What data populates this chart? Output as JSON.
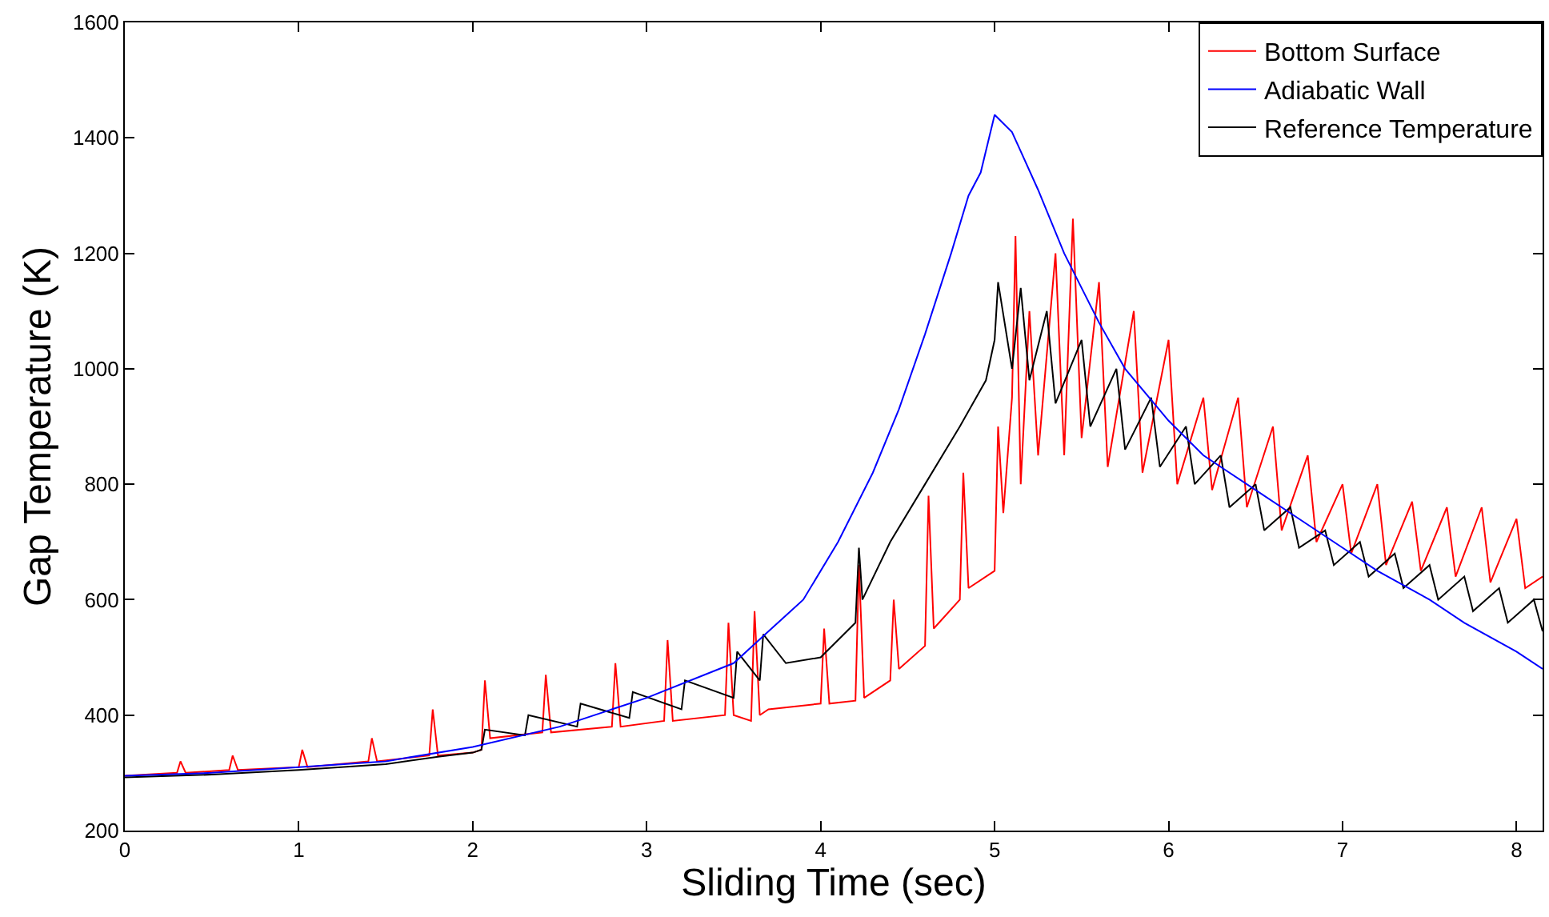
{
  "chart_data": {
    "type": "line",
    "xlabel": "Sliding Time (sec)",
    "ylabel": "Gap Temperature (K)",
    "xlim": [
      0,
      8.15
    ],
    "xticks": [
      0,
      1,
      2,
      3,
      4,
      5,
      6,
      7,
      8
    ],
    "ylim": [
      200,
      1600
    ],
    "yticks": [
      200,
      400,
      600,
      800,
      1000,
      1200,
      1400,
      1600
    ],
    "grid": false,
    "legend": "top right",
    "marker": "none",
    "line_style": "solid",
    "series": [
      {
        "name": "Bottom Surface",
        "color": "#ff0000",
        "x": [
          0,
          0.3,
          0.32,
          0.35,
          0.6,
          0.62,
          0.65,
          1.0,
          1.02,
          1.05,
          1.4,
          1.42,
          1.45,
          1.75,
          1.77,
          1.8,
          2.0,
          2.05,
          2.07,
          2.1,
          2.4,
          2.42,
          2.45,
          2.8,
          2.82,
          2.85,
          3.1,
          3.12,
          3.15,
          3.45,
          3.47,
          3.5,
          3.6,
          3.62,
          3.65,
          3.7,
          4.0,
          4.02,
          4.05,
          4.2,
          4.22,
          4.25,
          4.4,
          4.42,
          4.45,
          4.6,
          4.62,
          4.65,
          4.8,
          4.82,
          4.85,
          5.0,
          5.02,
          5.05,
          5.1,
          5.12,
          5.15,
          5.2,
          5.25,
          5.35,
          5.4,
          5.45,
          5.5,
          5.6,
          5.65,
          5.8,
          5.85,
          6.0,
          6.05,
          6.2,
          6.25,
          6.4,
          6.45,
          6.6,
          6.65,
          6.8,
          6.85,
          7.0,
          7.05,
          7.2,
          7.25,
          7.4,
          7.45,
          7.6,
          7.65,
          7.8,
          7.85,
          8.0,
          8.05,
          8.15
        ],
        "values": [
          295,
          300,
          320,
          300,
          305,
          330,
          305,
          310,
          340,
          310,
          320,
          360,
          320,
          330,
          410,
          330,
          335,
          340,
          460,
          360,
          370,
          470,
          370,
          380,
          490,
          380,
          390,
          530,
          390,
          400,
          560,
          400,
          390,
          580,
          400,
          410,
          420,
          550,
          420,
          425,
          660,
          430,
          460,
          600,
          480,
          520,
          780,
          550,
          600,
          820,
          620,
          650,
          900,
          750,
          950,
          1230,
          800,
          1100,
          850,
          1200,
          850,
          1260,
          880,
          1150,
          830,
          1100,
          820,
          1050,
          800,
          950,
          790,
          950,
          760,
          900,
          720,
          850,
          700,
          800,
          680,
          800,
          660,
          770,
          650,
          760,
          640,
          760,
          630,
          740,
          620,
          640
        ]
      },
      {
        "name": "Adiabatic Wall",
        "color": "#0000ff",
        "x": [
          0,
          0.5,
          1.0,
          1.5,
          2.0,
          2.5,
          3.0,
          3.5,
          3.7,
          3.9,
          4.1,
          4.3,
          4.45,
          4.6,
          4.75,
          4.85,
          4.92,
          5.0,
          5.1,
          5.25,
          5.4,
          5.6,
          5.75,
          6.0,
          6.2,
          6.5,
          6.7,
          7.0,
          7.2,
          7.5,
          7.7,
          8.0,
          8.15
        ],
        "values": [
          295,
          300,
          310,
          320,
          345,
          380,
          430,
          490,
          545,
          600,
          700,
          820,
          930,
          1060,
          1200,
          1300,
          1340,
          1440,
          1410,
          1310,
          1200,
          1080,
          1000,
          910,
          850,
          790,
          750,
          690,
          650,
          600,
          560,
          510,
          480
        ]
      },
      {
        "name": "Reference Temperature",
        "color": "#000000",
        "x": [
          0,
          0.5,
          1.0,
          1.5,
          1.8,
          2.0,
          2.05,
          2.07,
          2.3,
          2.32,
          2.6,
          2.62,
          2.9,
          2.92,
          3.2,
          3.22,
          3.5,
          3.52,
          3.65,
          3.67,
          3.8,
          4.0,
          4.2,
          4.22,
          4.24,
          4.4,
          4.6,
          4.8,
          4.95,
          5.0,
          5.02,
          5.1,
          5.15,
          5.2,
          5.3,
          5.35,
          5.5,
          5.55,
          5.7,
          5.75,
          5.9,
          5.95,
          6.1,
          6.15,
          6.3,
          6.35,
          6.5,
          6.55,
          6.7,
          6.75,
          6.9,
          6.95,
          7.1,
          7.15,
          7.3,
          7.35,
          7.5,
          7.55,
          7.7,
          7.75,
          7.9,
          7.95,
          8.1,
          8.15
        ],
        "values": [
          292,
          297,
          305,
          315,
          328,
          335,
          340,
          375,
          365,
          400,
          380,
          420,
          395,
          440,
          410,
          460,
          430,
          510,
          460,
          540,
          490,
          500,
          560,
          690,
          600,
          700,
          800,
          900,
          980,
          1050,
          1150,
          1000,
          1140,
          980,
          1100,
          940,
          1050,
          900,
          1000,
          860,
          950,
          830,
          900,
          800,
          850,
          760,
          800,
          720,
          760,
          690,
          720,
          660,
          700,
          640,
          680,
          620,
          660,
          600,
          640,
          580,
          620,
          560,
          600,
          545
        ]
      }
    ]
  }
}
